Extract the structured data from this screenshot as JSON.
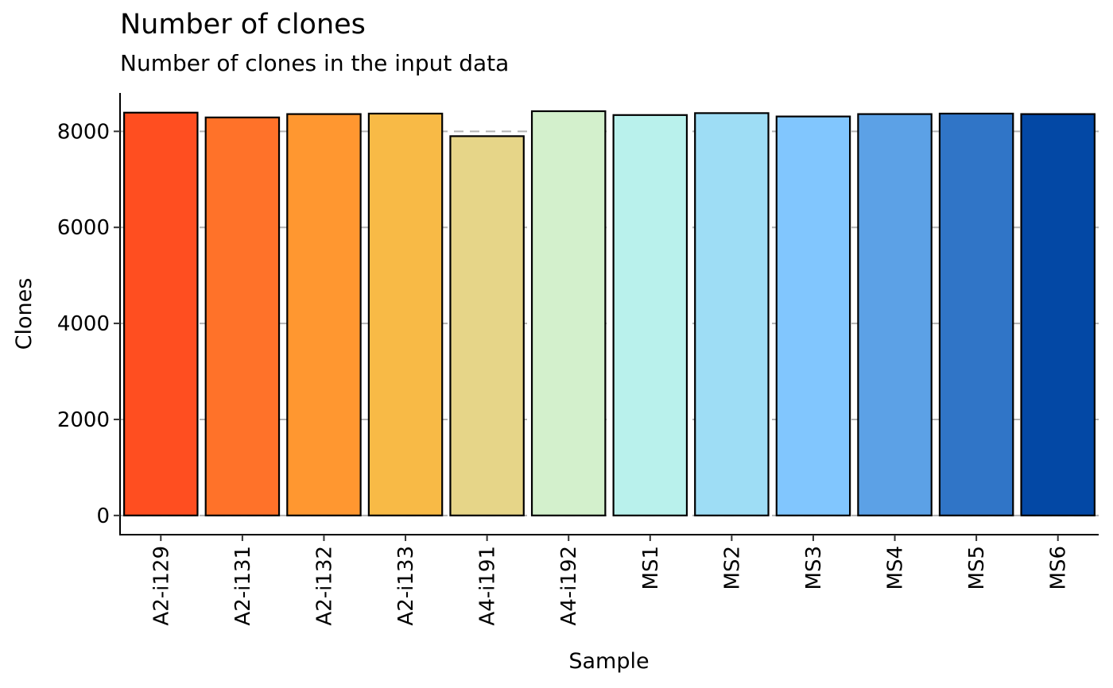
{
  "chart_data": {
    "type": "bar",
    "title": "Number of clones",
    "subtitle": "Number of clones in the input data",
    "xlabel": "Sample",
    "ylabel": "Clones",
    "ylim": [
      -400,
      8800
    ],
    "yticks": [
      0,
      2000,
      4000,
      6000,
      8000
    ],
    "grid": "horizontal-dashed",
    "legend": "none",
    "categories": [
      "A2-i129",
      "A2-i131",
      "A2-i132",
      "A2-i133",
      "A4-i191",
      "A4-i192",
      "MS1",
      "MS2",
      "MS3",
      "MS4",
      "MS5",
      "MS6"
    ],
    "values": [
      8390,
      8290,
      8360,
      8370,
      7900,
      8420,
      8340,
      8380,
      8310,
      8360,
      8370,
      8360
    ],
    "colors": [
      "#FF4E20",
      "#FF7229",
      "#FF9730",
      "#F8BA46",
      "#E6D588",
      "#D3F0CC",
      "#B9F1EC",
      "#9EDDF5",
      "#81C6FE",
      "#5CA1E6",
      "#3075C7",
      "#0348A5"
    ]
  }
}
